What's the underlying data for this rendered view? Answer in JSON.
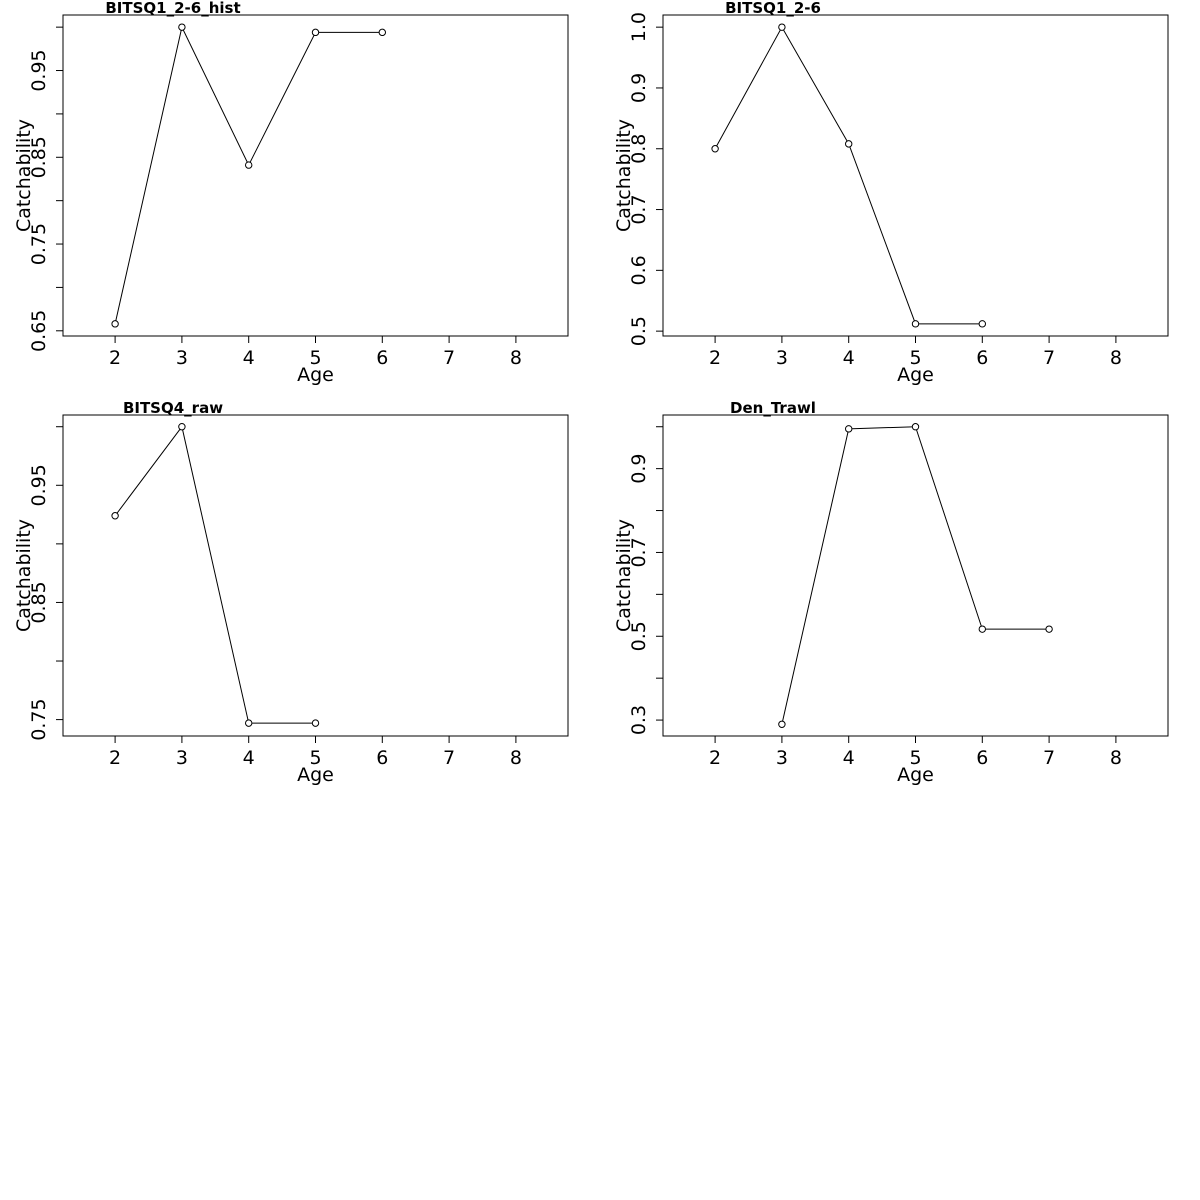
{
  "chart_data": [
    {
      "type": "line",
      "title": "BITSQ1_2-6_hist",
      "xlabel": "Age",
      "ylabel": "Catchability",
      "x": [
        2,
        3,
        4,
        5,
        6
      ],
      "values": [
        0.658,
        1.0,
        0.841,
        0.994,
        0.994
      ],
      "color": "#000000",
      "xlim": [
        1.22,
        8.78
      ],
      "xticks": [
        2,
        3,
        4,
        5,
        6,
        7,
        8
      ],
      "ylim": [
        0.644,
        1.014
      ],
      "yticks": [
        0.65,
        0.75,
        0.85,
        0.95
      ],
      "yminor": [
        0.7,
        0.8,
        0.9,
        1.0
      ]
    },
    {
      "type": "line",
      "title": "BITSQ1_2-6",
      "xlabel": "Age",
      "ylabel": "Catchability",
      "x": [
        2,
        3,
        4,
        5,
        6
      ],
      "values": [
        0.8,
        1.0,
        0.808,
        0.512,
        0.512
      ],
      "color": "#000000",
      "xlim": [
        1.22,
        8.78
      ],
      "xticks": [
        2,
        3,
        4,
        5,
        6,
        7,
        8
      ],
      "ylim": [
        0.492,
        1.02
      ],
      "yticks": [
        {
          "value": 0.5,
          "label": "0.5"
        },
        {
          "value": 0.6,
          "label": "0.6"
        },
        {
          "value": 0.7,
          "label": "0.7"
        },
        {
          "value": 0.8,
          "label": "0.8"
        },
        {
          "value": 0.9,
          "label": "0.9"
        },
        {
          "value": 1.0,
          "label": "1.0"
        }
      ]
    },
    {
      "type": "line",
      "title": "BITSQ4_raw",
      "xlabel": "Age",
      "ylabel": "Catchability",
      "x": [
        2,
        3,
        4,
        5
      ],
      "values": [
        0.924,
        1.0,
        0.747,
        0.747
      ],
      "color": "#000000",
      "xlim": [
        1.22,
        8.78
      ],
      "xticks": [
        2,
        3,
        4,
        5,
        6,
        7,
        8
      ],
      "ylim": [
        0.736,
        1.01
      ],
      "yticks": [
        0.75,
        0.85,
        0.95
      ],
      "yminor": [
        0.8,
        0.9,
        1.0
      ]
    },
    {
      "type": "line",
      "title": "Den_Trawl",
      "xlabel": "Age",
      "ylabel": "Catchability",
      "x": [
        3,
        4,
        5,
        6,
        7
      ],
      "values": [
        0.29,
        0.995,
        1.0,
        0.517,
        0.517
      ],
      "color": "#000000",
      "xlim": [
        1.22,
        8.78
      ],
      "xticks": [
        2,
        3,
        4,
        5,
        6,
        7,
        8
      ],
      "ylim": [
        0.262,
        1.028
      ],
      "yticks": [
        0.3,
        0.5,
        0.7,
        0.9
      ],
      "yminor": [
        0.4,
        0.6,
        0.8,
        1.0
      ]
    }
  ]
}
